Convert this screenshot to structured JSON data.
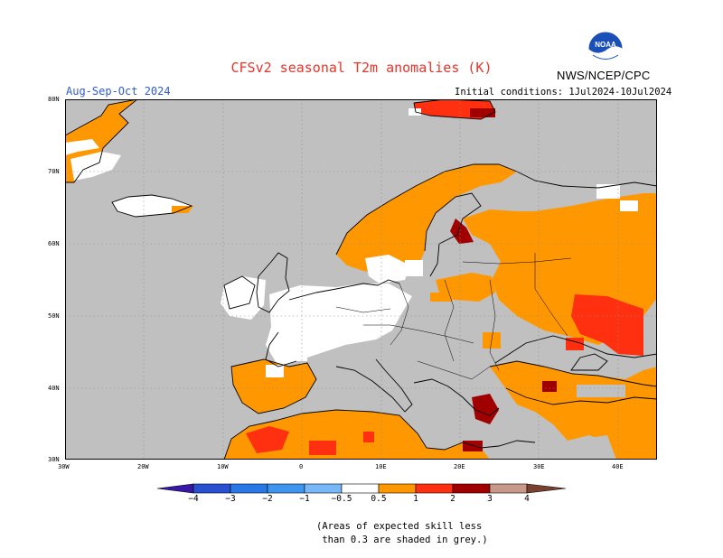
{
  "header": {
    "title": "CFSv2 seasonal T2m anomalies (K)",
    "agency": "NWS/NCEP/CPC",
    "logo_text": "NOAA",
    "season": "Aug-Sep-Oct 2024",
    "initial_conditions": "Initial conditions: 1Jul2024-10Jul2024"
  },
  "map": {
    "region": "Europe",
    "lon_range": [
      -30,
      45
    ],
    "lat_range": [
      30,
      80
    ],
    "lat_labels": [
      "80N",
      "70N",
      "60N",
      "50N",
      "40N",
      "30N"
    ],
    "lon_labels": [
      "30W",
      "20W",
      "10W",
      "0",
      "10E",
      "20E",
      "30E",
      "40E"
    ],
    "background_color": "#c0c0c0"
  },
  "colorbar": {
    "labels": [
      "−4",
      "−3",
      "−2",
      "−1",
      "−0.5",
      "0.5",
      "1",
      "2",
      "3",
      "4"
    ],
    "colors": [
      "#3818a8",
      "#2850d0",
      "#2878e8",
      "#3c96f0",
      "#78b8f8",
      "#ffffff",
      "#ff9800",
      "#ff3010",
      "#a00000",
      "#c89888",
      "#7a4030"
    ]
  },
  "footnote": {
    "line1": "(Areas of expected skill less",
    "line2": " than 0.3 are shaded in grey.)"
  }
}
